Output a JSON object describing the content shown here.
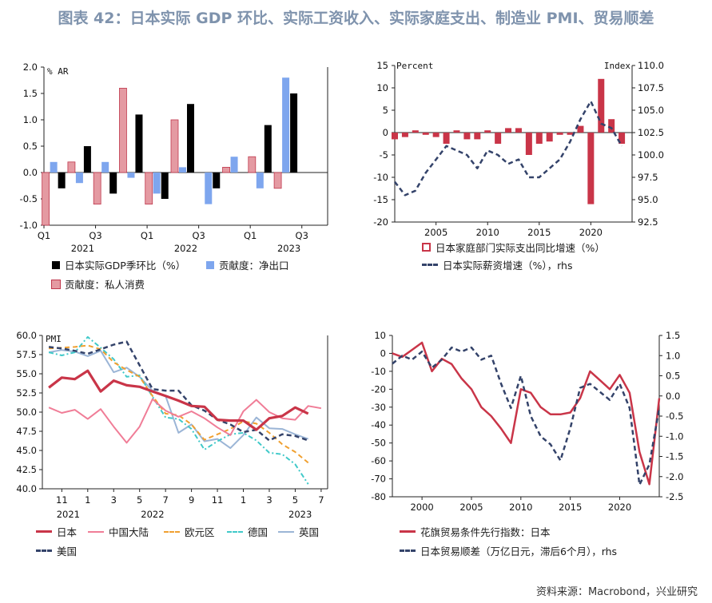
{
  "title": "图表 42：日本实际 GDP 环比、实际工资收入、实际家庭支出、制造业 PMI、贸易顺差",
  "source": "资料来源：Macrobond，兴业研究",
  "colors": {
    "black": "#000000",
    "pink": "#e49aa2",
    "pinkEdge": "#c0384d",
    "blue": "#7ea6ee",
    "red": "#c93548",
    "navy": "#34436a",
    "lightpink": "#f07d97",
    "orange": "#f0a030",
    "teal": "#40c9c9",
    "lightblue": "#9bb5d6"
  },
  "chart_data": [
    {
      "id": "gdp",
      "type": "bar",
      "unit_label": "% AR",
      "ylim": [
        -1.0,
        2.0
      ],
      "yticks": [
        "2.0",
        "1.5",
        "1.0",
        "0.5",
        "0.0",
        "-0.5",
        "-1.0"
      ],
      "categories": [
        "2021Q1",
        "2021Q2",
        "2021Q3",
        "2021Q4",
        "2022Q1",
        "2022Q2",
        "2022Q3",
        "2022Q4",
        "2023Q1",
        "2023Q2",
        "2023Q3"
      ],
      "xtick_labels": [
        "Q1",
        "Q3",
        "Q1",
        "Q3",
        "Q1",
        "Q3"
      ],
      "year_labels": [
        "2021",
        "2022",
        "2023"
      ],
      "series": [
        {
          "name": "日本实际GDP季环比（%）",
          "values": [
            -0.3,
            0.5,
            -0.4,
            1.1,
            -0.5,
            1.3,
            -0.3,
            0.0,
            0.9,
            1.5,
            null
          ]
        },
        {
          "name": "贡献度：净出口",
          "values": [
            0.2,
            -0.2,
            0.2,
            -0.1,
            -0.4,
            0.1,
            -0.6,
            0.3,
            -0.3,
            1.8,
            null
          ]
        },
        {
          "name": "贡献度：私人消费",
          "values": [
            -1.0,
            0.2,
            -0.6,
            1.6,
            -0.6,
            1.0,
            0.0,
            0.1,
            0.3,
            -0.3,
            null
          ]
        }
      ],
      "legend": [
        "日本实际GDP季环比（%）",
        "贡献度：净出口",
        "贡献度：私人消费"
      ]
    },
    {
      "id": "spending",
      "type": "bar+line",
      "left_label": "Percent",
      "right_label": "Index",
      "ylim_left": [
        -20,
        15
      ],
      "ylim_right": [
        92.5,
        110.0
      ],
      "yticks_left": [
        "15",
        "10",
        "5",
        "0",
        "-5",
        "-10",
        "-15",
        "-20"
      ],
      "yticks_right": [
        "110.0",
        "107.5",
        "105.0",
        "102.5",
        "100.0",
        "97.5",
        "95.0",
        "92.5"
      ],
      "xlim": [
        2001,
        2024
      ],
      "xticks": [
        "2005",
        "2010",
        "2015",
        "2020"
      ],
      "series": [
        {
          "name": "日本家庭部门实际支出同比增速（%）",
          "x": [
            2001,
            2002,
            2003,
            2004,
            2005,
            2006,
            2007,
            2008,
            2009,
            2010,
            2011,
            2012,
            2013,
            2014,
            2015,
            2016,
            2017,
            2018,
            2019,
            2020,
            2021,
            2022,
            2023
          ],
          "values": [
            -1.5,
            -1.0,
            0.5,
            -0.5,
            -1.0,
            -2.5,
            0.5,
            -1.5,
            -1.5,
            0.5,
            -2.5,
            1.0,
            1.0,
            -5.0,
            -2.5,
            -2.0,
            -0.5,
            -0.5,
            1.5,
            -16.0,
            12.0,
            3.0,
            -2.5
          ]
        },
        {
          "name": "日本实际薪资增速（%），rhs",
          "x": [
            2001,
            2002,
            2003,
            2004,
            2005,
            2006,
            2007,
            2008,
            2009,
            2010,
            2011,
            2012,
            2013,
            2014,
            2015,
            2016,
            2017,
            2018,
            2019,
            2020,
            2021,
            2022,
            2023
          ],
          "values": [
            97.0,
            95.5,
            96.0,
            98.0,
            99.5,
            101.0,
            100.5,
            100.0,
            98.5,
            100.5,
            100.0,
            99.0,
            99.5,
            97.5,
            97.5,
            98.5,
            99.5,
            101.5,
            104.0,
            106.0,
            103.5,
            103.0,
            101.0
          ]
        }
      ],
      "legend": [
        "日本家庭部门实际支出同比增速（%）",
        "日本实际薪资增速（%），rhs"
      ]
    },
    {
      "id": "pmi",
      "type": "line",
      "unit_label": "PMI",
      "ylim": [
        40.0,
        60.0
      ],
      "yticks": [
        "60.0",
        "57.5",
        "55.0",
        "52.5",
        "50.0",
        "47.5",
        "45.0",
        "42.5",
        "40.0"
      ],
      "x": [
        "2021-10",
        "2021-11",
        "2021-12",
        "2022-01",
        "2022-02",
        "2022-03",
        "2022-04",
        "2022-05",
        "2022-06",
        "2022-07",
        "2022-08",
        "2022-09",
        "2022-10",
        "2022-11",
        "2022-12",
        "2023-01",
        "2023-02",
        "2023-03",
        "2023-04",
        "2023-05",
        "2023-06",
        "2023-07"
      ],
      "xtick_labels": [
        "11",
        "1",
        "3",
        "5",
        "7",
        "9",
        "11",
        "1",
        "3",
        "5",
        "7"
      ],
      "year_labels": [
        "2021",
        "2022",
        "2023"
      ],
      "series": [
        {
          "name": "日本",
          "values": [
            53.2,
            54.5,
            54.3,
            55.4,
            52.7,
            54.1,
            53.5,
            53.3,
            52.7,
            52.1,
            51.5,
            50.8,
            50.7,
            49.0,
            48.9,
            48.9,
            47.7,
            49.2,
            49.5,
            50.6,
            49.8,
            null
          ]
        },
        {
          "name": "中国大陆",
          "values": [
            50.6,
            49.9,
            50.3,
            49.1,
            50.4,
            48.1,
            46.0,
            48.1,
            51.7,
            50.2,
            49.4,
            50.1,
            49.2,
            48.0,
            47.0,
            50.1,
            51.6,
            50.0,
            49.2,
            49.0,
            50.8,
            50.5
          ]
        },
        {
          "name": "欧元区",
          "values": [
            58.3,
            58.4,
            58.5,
            58.7,
            58.2,
            56.5,
            55.5,
            54.6,
            52.1,
            49.8,
            49.6,
            48.4,
            46.4,
            47.1,
            47.8,
            48.8,
            48.5,
            47.3,
            45.8,
            44.8,
            43.4,
            null
          ]
        },
        {
          "name": "德国",
          "values": [
            57.8,
            57.4,
            57.8,
            59.8,
            58.4,
            56.9,
            54.6,
            54.8,
            52.0,
            49.3,
            49.1,
            47.8,
            45.1,
            46.2,
            47.1,
            47.3,
            46.3,
            44.7,
            44.5,
            43.2,
            40.6,
            null
          ]
        },
        {
          "name": "英国",
          "values": [
            57.8,
            58.1,
            57.9,
            57.3,
            58.0,
            55.2,
            55.8,
            54.6,
            52.8,
            52.1,
            47.3,
            48.4,
            46.2,
            46.5,
            45.3,
            47.0,
            49.3,
            47.9,
            47.8,
            47.1,
            46.5,
            null
          ]
        },
        {
          "name": "美国",
          "values": [
            58.5,
            58.3,
            58.0,
            57.6,
            58.2,
            58.8,
            59.2,
            56.1,
            53.0,
            52.8,
            52.8,
            50.9,
            50.2,
            49.0,
            48.4,
            47.4,
            47.7,
            46.3,
            47.1,
            46.9,
            46.3,
            null
          ]
        }
      ],
      "legend": [
        "日本",
        "中国大陆",
        "欧元区",
        "德国",
        "英国",
        "美国"
      ]
    },
    {
      "id": "trade",
      "type": "line",
      "ylim_left": [
        -80,
        10
      ],
      "ylim_right": [
        -2.5,
        1.5
      ],
      "yticks_left": [
        "10",
        "0",
        "-10",
        "-20",
        "-30",
        "-40",
        "-50",
        "-60",
        "-70",
        "-80"
      ],
      "yticks_right": [
        "1.5",
        "1.0",
        "0.5",
        "0.0",
        "-0.5",
        "-1.0",
        "-1.5",
        "-2.0",
        "-2.5"
      ],
      "xlim": [
        1997,
        2024
      ],
      "xticks": [
        "2000",
        "2005",
        "2010",
        "2015",
        "2020"
      ],
      "series": [
        {
          "name": "花旗贸易条件先行指数：日本",
          "x": [
            1997,
            1998,
            1999,
            2000,
            2001,
            2002,
            2003,
            2004,
            2005,
            2006,
            2007,
            2008,
            2009,
            2010,
            2011,
            2012,
            2013,
            2014,
            2015,
            2016,
            2017,
            2018,
            2019,
            2020,
            2021,
            2022,
            2023,
            2024
          ],
          "values": [
            0,
            -2,
            2,
            6,
            -10,
            -3,
            -6,
            -14,
            -20,
            -30,
            -35,
            -42,
            -50,
            -20,
            -22,
            -30,
            -34,
            -34,
            -33,
            -25,
            -10,
            -15,
            -20,
            -12,
            -22,
            -55,
            -73,
            -25
          ]
        },
        {
          "name": "日本贸易顺差（万亿日元，滞后6个月），rhs",
          "x": [
            1997,
            1998,
            1999,
            2000,
            2001,
            2002,
            2003,
            2004,
            2005,
            2006,
            2007,
            2008,
            2009,
            2010,
            2011,
            2012,
            2013,
            2014,
            2015,
            2016,
            2017,
            2018,
            2019,
            2020,
            2021,
            2022,
            2023,
            2024
          ],
          "values": [
            0.8,
            1.0,
            0.9,
            1.1,
            0.7,
            0.9,
            1.2,
            1.1,
            1.2,
            0.9,
            1.0,
            0.3,
            -0.3,
            0.5,
            -0.5,
            -1.0,
            -1.2,
            -1.6,
            -0.8,
            0.2,
            0.3,
            0.1,
            -0.1,
            0.3,
            -0.3,
            -2.2,
            -1.7,
            -0.3
          ]
        }
      ],
      "legend": [
        "花旗贸易条件先行指数：日本",
        "日本贸易顺差（万亿日元，滞后6个月），rhs"
      ]
    }
  ]
}
